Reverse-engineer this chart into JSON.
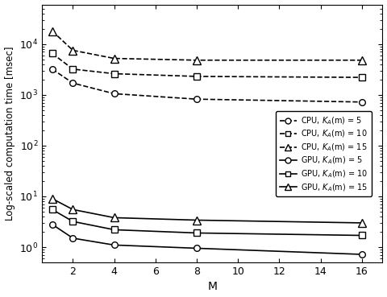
{
  "x": [
    1,
    2,
    4,
    8,
    16
  ],
  "cpu_k5": [
    3200,
    1700,
    1050,
    820,
    720
  ],
  "cpu_k10": [
    6500,
    3200,
    2600,
    2300,
    2200
  ],
  "cpu_k15": [
    18000,
    7500,
    5200,
    4800,
    4800
  ],
  "gpu_k5": [
    2.8,
    1.5,
    1.1,
    0.95,
    0.72
  ],
  "gpu_k10": [
    5.5,
    3.2,
    2.2,
    1.9,
    1.7
  ],
  "gpu_k15": [
    9.0,
    5.5,
    3.8,
    3.4,
    3.0
  ],
  "ylabel": "Log-scaled computation time [msec]",
  "xlabel": "M",
  "color": "black",
  "figsize": [
    4.8,
    3.69
  ],
  "dpi": 100
}
